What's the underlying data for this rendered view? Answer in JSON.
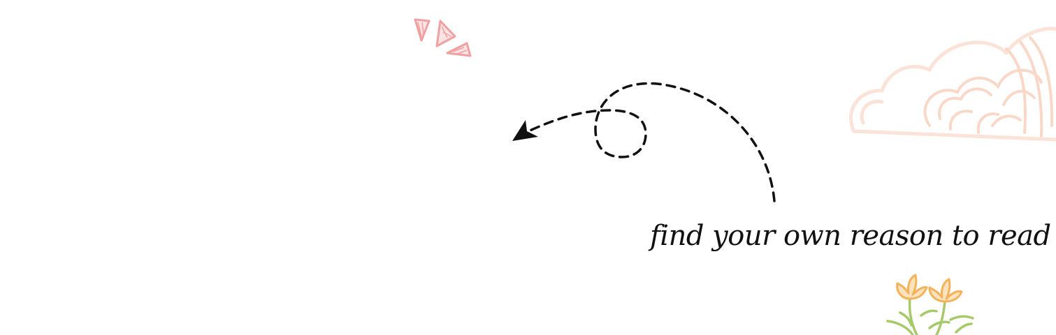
{
  "tagline": "find your own reason to read",
  "colors": {
    "background": "#ffffff",
    "ink": "#111111",
    "sparkle": "#f2a6a6",
    "cloud": "#fbe3d8",
    "flower": "#f6b25a",
    "stem": "#a6c96a"
  },
  "icons": {
    "sparkle": "sparkle-doodle-icon",
    "arrow": "dashed-loop-arrow-icon",
    "cloud": "cloud-doodle-icon",
    "flowers": "flower-doodle-icon"
  }
}
